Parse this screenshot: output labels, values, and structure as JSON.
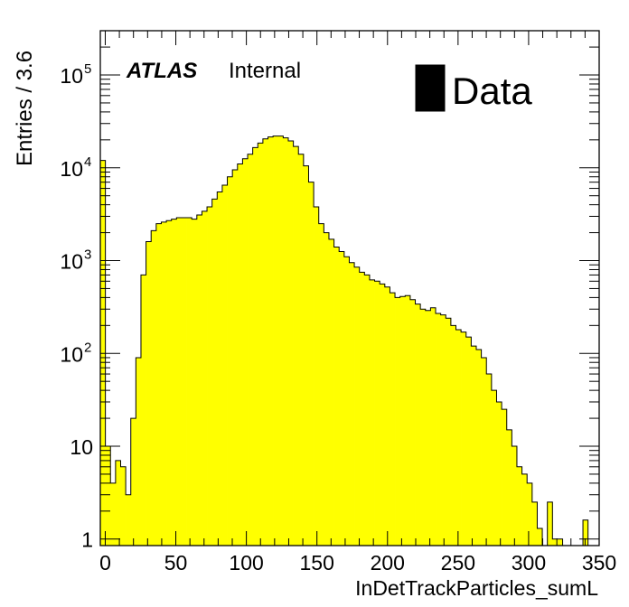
{
  "chart_data": {
    "type": "histogram",
    "logy": true,
    "xlabel": "InDetTrackParticles_sumL",
    "ylabel": "Entries / 3.6",
    "bin_width": 3.6,
    "xlim": [
      -3.5,
      350
    ],
    "ylim": [
      0.85,
      300000
    ],
    "fill_color": "#ffff00",
    "x_ticks": [
      "0",
      "50",
      "100",
      "150",
      "200",
      "250",
      "300",
      "350"
    ],
    "x_tick_values": [
      0,
      50,
      100,
      150,
      200,
      250,
      300,
      350
    ],
    "y_ticks": [
      {
        "value": 1,
        "label": "1",
        "sup": ""
      },
      {
        "value": 10,
        "label": "10",
        "sup": ""
      },
      {
        "value": 100,
        "label": "10",
        "sup": "2"
      },
      {
        "value": 1000,
        "label": "10",
        "sup": "3"
      },
      {
        "value": 10000,
        "label": "10",
        "sup": "4"
      },
      {
        "value": 100000,
        "label": "10",
        "sup": "5"
      }
    ],
    "atlas_label": "ATLAS",
    "atlas_sublabel": "Internal",
    "legend": [
      {
        "label": "Data",
        "color": "#ffff00"
      }
    ],
    "series": [
      {
        "name": "Data",
        "bin_start": -3.5,
        "values": [
          12000,
          10,
          4,
          7,
          6,
          3,
          20,
          90,
          700,
          1600,
          2100,
          2500,
          2600,
          2700,
          2800,
          2900,
          2900,
          2900,
          2800,
          3100,
          3400,
          3800,
          4600,
          5500,
          6500,
          8000,
          9500,
          11000,
          12500,
          14000,
          16500,
          18500,
          20500,
          21500,
          22000,
          22000,
          21000,
          19500,
          17000,
          14000,
          10500,
          7000,
          3800,
          2500,
          2000,
          1700,
          1400,
          1250,
          1100,
          950,
          850,
          750,
          700,
          620,
          600,
          560,
          520,
          450,
          400,
          410,
          420,
          380,
          340,
          300,
          290,
          310,
          270,
          260,
          240,
          200,
          180,
          170,
          150,
          120,
          110,
          90,
          60,
          40,
          30,
          25,
          15,
          10,
          6,
          5,
          4,
          2.5,
          1.3,
          0,
          2.5,
          1,
          1,
          0,
          0,
          0,
          0,
          1.6
        ]
      }
    ]
  }
}
